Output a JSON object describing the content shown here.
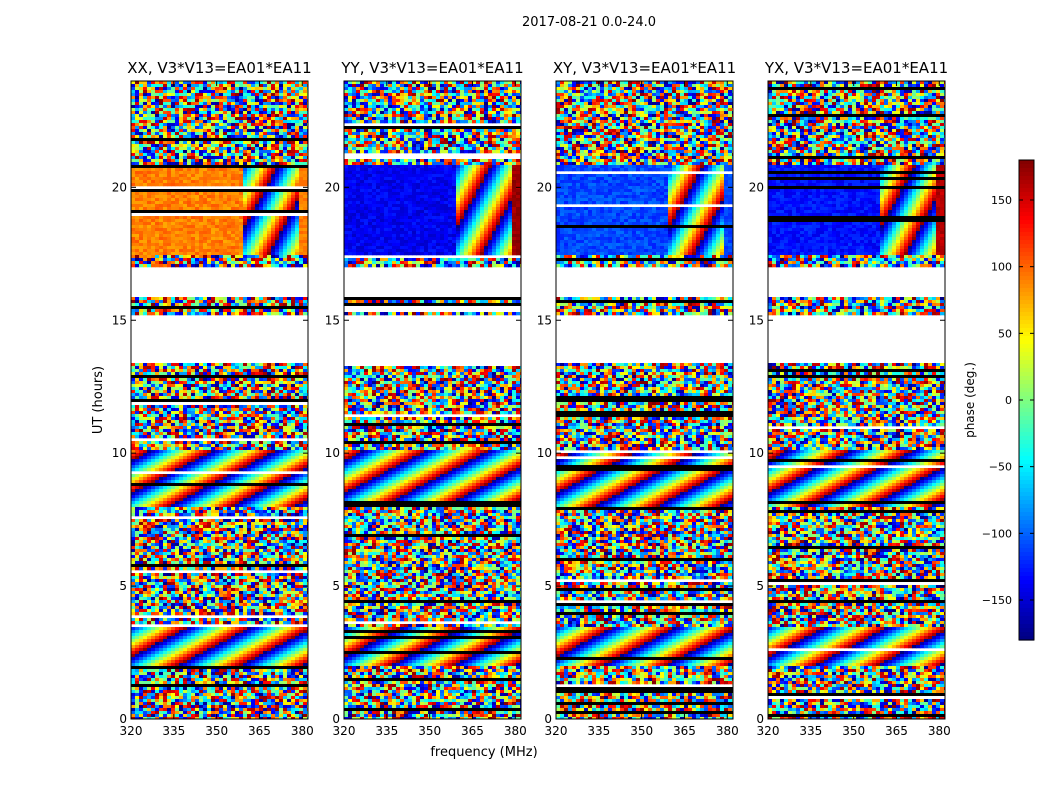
{
  "figure_title": "2017-08-21 0.0-24.0",
  "xlabel": "frequency (MHz)",
  "ylabel": "UT (hours)",
  "chart_data": {
    "type": "heatmap",
    "title": "2017-08-21 0.0-24.0",
    "xlabel": "frequency (MHz)",
    "ylabel": "UT (hours)",
    "xlim": [
      320,
      382
    ],
    "ylim": [
      0,
      24
    ],
    "xticks": [
      320,
      335,
      350,
      365,
      380
    ],
    "yticks": [
      0,
      5,
      10,
      15,
      20
    ],
    "panels": [
      {
        "title": "XX, V3*V13=EA01*EA11",
        "block_phase": 90,
        "block_high_phase": 90
      },
      {
        "title": "YY, V3*V13=EA01*EA11",
        "block_phase": -140,
        "block_high_phase": 170
      },
      {
        "title": "XY, V3*V13=EA01*EA11",
        "block_phase": -110,
        "block_high_phase": -110
      },
      {
        "title": "YX, V3*V13=EA01*EA11",
        "block_phase": -130,
        "block_high_phase": 160
      }
    ],
    "colorbar": {
      "label": "phase (deg.)",
      "range": [
        -180,
        180
      ],
      "ticks": [
        150,
        100,
        50,
        0,
        -50,
        -100,
        -150
      ],
      "colormap": "jet"
    },
    "gaps_hours": [
      [
        13.4,
        15.2
      ],
      [
        15.9,
        17.1
      ]
    ],
    "blank_rows_hours": [
      [
        16.0,
        16.2
      ],
      [
        16.6,
        16.8
      ]
    ]
  }
}
